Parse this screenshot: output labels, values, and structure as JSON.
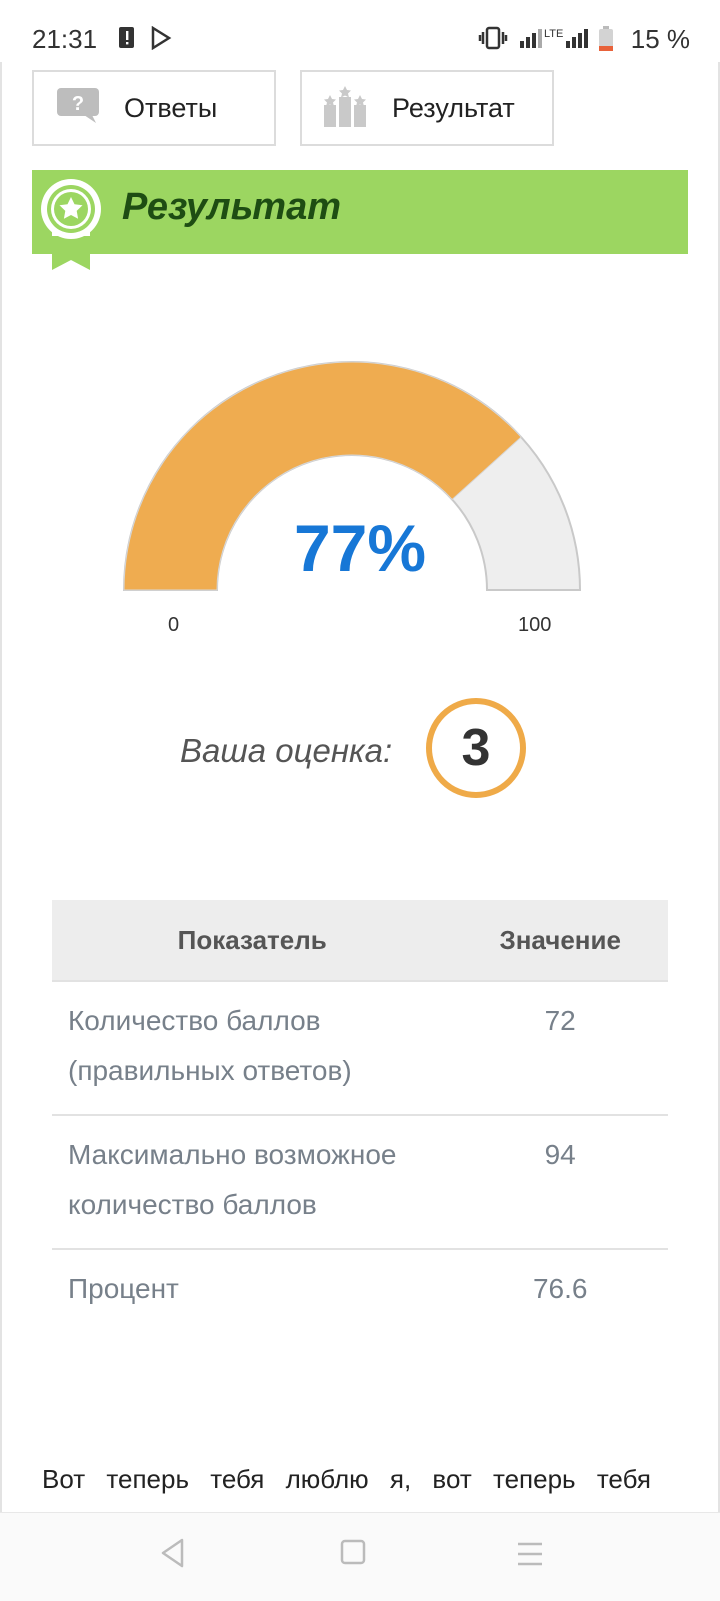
{
  "status_bar": {
    "time": "21:31",
    "network": "LTE",
    "battery": "15 %",
    "icons": [
      "sim-alert-icon",
      "play-store-icon",
      "vibrate-icon",
      "signal-icon",
      "battery-icon"
    ]
  },
  "tabs": [
    {
      "label": "Ответы",
      "icon": "question-bubble-icon"
    },
    {
      "label": "Результат",
      "icon": "podium-icon"
    }
  ],
  "banner": {
    "title": "Результат",
    "icon": "award-badge-icon",
    "color": "#9cd661"
  },
  "gauge": {
    "value_text": "77%",
    "min_label": "0",
    "max_label": "100",
    "fraction": 0.766,
    "fill_color": "#efac50",
    "track_color": "#eeeeee"
  },
  "grade": {
    "label": "Ваша оценка:",
    "value": "3"
  },
  "table": {
    "headers": [
      "Показатель",
      "Значение"
    ],
    "rows": [
      {
        "param": "Количество баллов (правильных ответов)",
        "value": "72"
      },
      {
        "param": "Максимально возможное количество баллов",
        "value": "94"
      },
      {
        "param": "Процент",
        "value": "76.6"
      }
    ]
  },
  "bottom_text": "Вот теперь тебя люблю я, вот теперь тебя",
  "nav": [
    "back-icon",
    "home-icon",
    "menu-icon"
  ]
}
